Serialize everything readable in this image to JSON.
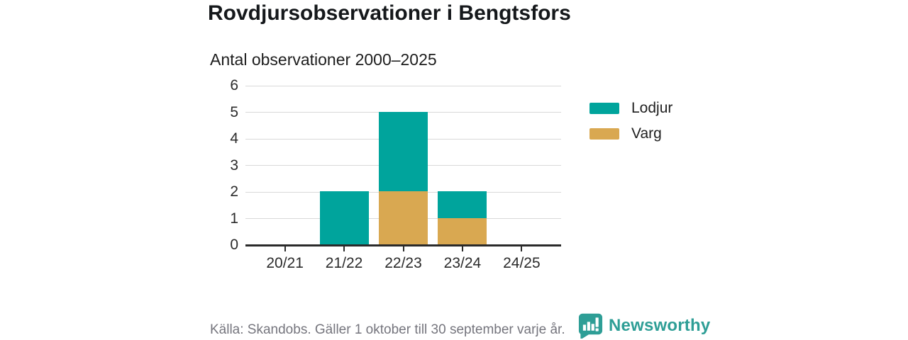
{
  "header": {
    "title": "Rovdjursobservationer i Bengtsfors",
    "subtitle": "Antal observationer 2000–2025"
  },
  "chart_data": {
    "type": "bar",
    "stacked": true,
    "title": "Antal observationer 2000–2025",
    "categories": [
      "20/21",
      "21/22",
      "22/23",
      "23/24",
      "24/25"
    ],
    "series": [
      {
        "name": "Lodjur",
        "color": "#00a49c",
        "values": [
          0,
          2,
          3,
          1,
          0
        ]
      },
      {
        "name": "Varg",
        "color": "#d9a851",
        "values": [
          0,
          0,
          2,
          1,
          0
        ]
      }
    ],
    "stack_order_bottom_to_top": [
      "Varg",
      "Lodjur"
    ],
    "ylim": [
      0,
      6
    ],
    "yticks": [
      0,
      1,
      2,
      3,
      4,
      5,
      6
    ],
    "grid": "horizontal-only",
    "legend_position": "right",
    "legend": [
      {
        "label": "Lodjur",
        "color": "#00a49c"
      },
      {
        "label": "Varg",
        "color": "#d9a851"
      }
    ]
  },
  "footer": {
    "source": "Källa: Skandobs. Gäller 1 oktober till 30 september varje år.",
    "brand": "Newsworthy",
    "brand_color": "#2e9e96",
    "logo_icon": "speech-bubble-bar-chart-icon"
  }
}
